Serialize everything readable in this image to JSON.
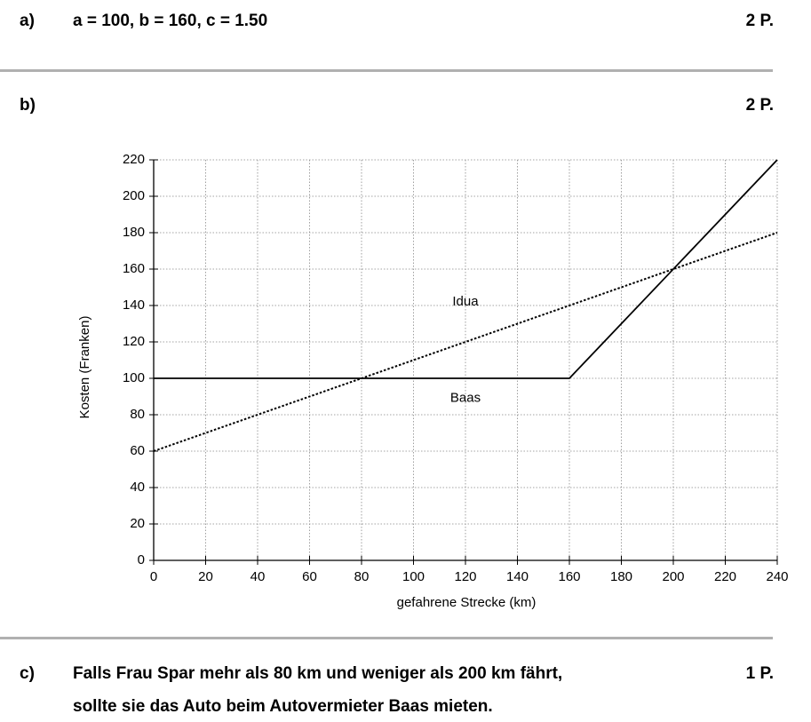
{
  "sections": [
    {
      "label": "a)",
      "text": "a = 100, b = 160, c = 1.50",
      "points": "2 P."
    },
    {
      "label": "b)",
      "points": "2 P."
    },
    {
      "label": "c)",
      "lines": [
        "Falls Frau Spar mehr als 80 km und weniger als 200 km fährt,",
        "sollte sie das Auto beim Autovermieter Baas mieten."
      ],
      "points": "1 P."
    }
  ],
  "chart_data": {
    "type": "line",
    "xlabel": "gefahrene Strecke (km)",
    "ylabel": "Kosten (Franken)",
    "xlim": [
      0,
      240
    ],
    "ylim": [
      0,
      220
    ],
    "xticks": [
      0,
      20,
      40,
      60,
      80,
      100,
      120,
      140,
      160,
      180,
      200,
      220,
      240
    ],
    "yticks": [
      0,
      20,
      40,
      60,
      80,
      100,
      120,
      140,
      160,
      180,
      200,
      220
    ],
    "grid": true,
    "series": [
      {
        "name": "Idua",
        "color": "#000000",
        "style": "dotted",
        "x": [
          0,
          240
        ],
        "values": [
          60,
          180
        ]
      },
      {
        "name": "Baas",
        "color": "#000000",
        "style": "solid",
        "x": [
          0,
          160,
          240
        ],
        "values": [
          100,
          100,
          220
        ]
      }
    ]
  }
}
